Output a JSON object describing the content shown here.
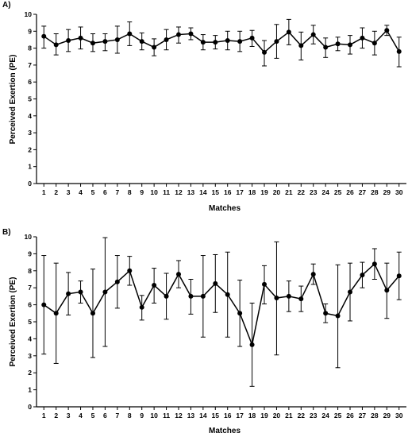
{
  "chart_data": [
    {
      "type": "line",
      "panel_label": "A)",
      "xlabel": "Matches",
      "ylabel": "Perceived Exertion (PE)",
      "ylim": [
        0,
        10
      ],
      "yticks": [
        0,
        1,
        2,
        3,
        4,
        5,
        6,
        7,
        8,
        9,
        "10"
      ],
      "grid": false,
      "categories": [
        1,
        2,
        3,
        4,
        5,
        6,
        7,
        8,
        9,
        10,
        11,
        12,
        13,
        14,
        15,
        16,
        17,
        18,
        19,
        20,
        21,
        22,
        23,
        24,
        25,
        26,
        27,
        28,
        29,
        30
      ],
      "series": [
        {
          "values": [
            8.7,
            8.2,
            8.45,
            8.6,
            8.3,
            8.4,
            8.5,
            8.85,
            8.4,
            8.05,
            8.5,
            8.8,
            8.85,
            8.35,
            8.35,
            8.45,
            8.4,
            8.6,
            7.75,
            8.4,
            8.95,
            8.15,
            8.8,
            8.05,
            8.25,
            8.2,
            8.6,
            8.3,
            9.05,
            7.8
          ],
          "err_high": [
            9.3,
            8.85,
            9.1,
            9.25,
            8.85,
            8.85,
            9.3,
            9.55,
            8.9,
            8.55,
            9.1,
            9.25,
            9.2,
            8.8,
            8.75,
            9.0,
            9.0,
            9.05,
            8.45,
            9.4,
            9.7,
            8.95,
            9.35,
            8.6,
            8.65,
            8.75,
            9.2,
            9.0,
            9.35,
            8.65
          ],
          "err_low": [
            8.0,
            7.6,
            7.8,
            7.95,
            7.8,
            7.85,
            7.7,
            8.15,
            7.9,
            7.55,
            7.9,
            8.3,
            8.5,
            7.9,
            7.95,
            7.9,
            7.8,
            8.1,
            6.95,
            7.4,
            8.2,
            7.3,
            8.25,
            7.45,
            7.85,
            7.65,
            8.0,
            7.6,
            8.75,
            6.9
          ]
        }
      ]
    },
    {
      "type": "line",
      "panel_label": "B)",
      "xlabel": "Matches",
      "ylabel": "Perceived Exertion (PE)",
      "ylim": [
        0,
        10
      ],
      "yticks": [
        0,
        1,
        2,
        3,
        4,
        5,
        6,
        7,
        8,
        9,
        "10"
      ],
      "grid": false,
      "categories": [
        1,
        2,
        3,
        4,
        5,
        6,
        7,
        8,
        9,
        10,
        11,
        12,
        13,
        14,
        15,
        16,
        17,
        18,
        19,
        20,
        21,
        22,
        23,
        24,
        25,
        26,
        27,
        28,
        29,
        30
      ],
      "series": [
        {
          "values": [
            6.0,
            5.5,
            6.65,
            6.75,
            5.5,
            6.75,
            7.35,
            8.0,
            5.85,
            7.15,
            6.5,
            7.8,
            6.5,
            6.5,
            7.25,
            6.6,
            5.5,
            3.65,
            7.2,
            6.4,
            6.5,
            6.35,
            7.8,
            5.5,
            5.35,
            6.75,
            7.75,
            8.4,
            6.85,
            7.7
          ],
          "err_high": [
            8.9,
            8.45,
            7.9,
            7.4,
            8.1,
            9.95,
            8.9,
            8.85,
            6.55,
            8.15,
            7.85,
            8.6,
            7.5,
            8.9,
            8.95,
            9.1,
            7.45,
            6.1,
            8.3,
            9.7,
            7.4,
            7.1,
            8.4,
            6.05,
            8.35,
            8.45,
            8.5,
            9.3,
            8.45,
            9.1
          ],
          "err_low": [
            3.1,
            2.55,
            5.4,
            6.1,
            2.9,
            3.55,
            5.8,
            7.15,
            5.1,
            6.1,
            5.15,
            7.0,
            5.45,
            4.1,
            5.55,
            4.1,
            3.55,
            1.2,
            6.05,
            3.05,
            5.6,
            5.6,
            7.2,
            4.95,
            2.3,
            5.05,
            7.0,
            7.5,
            5.2,
            6.3
          ]
        }
      ]
    }
  ]
}
